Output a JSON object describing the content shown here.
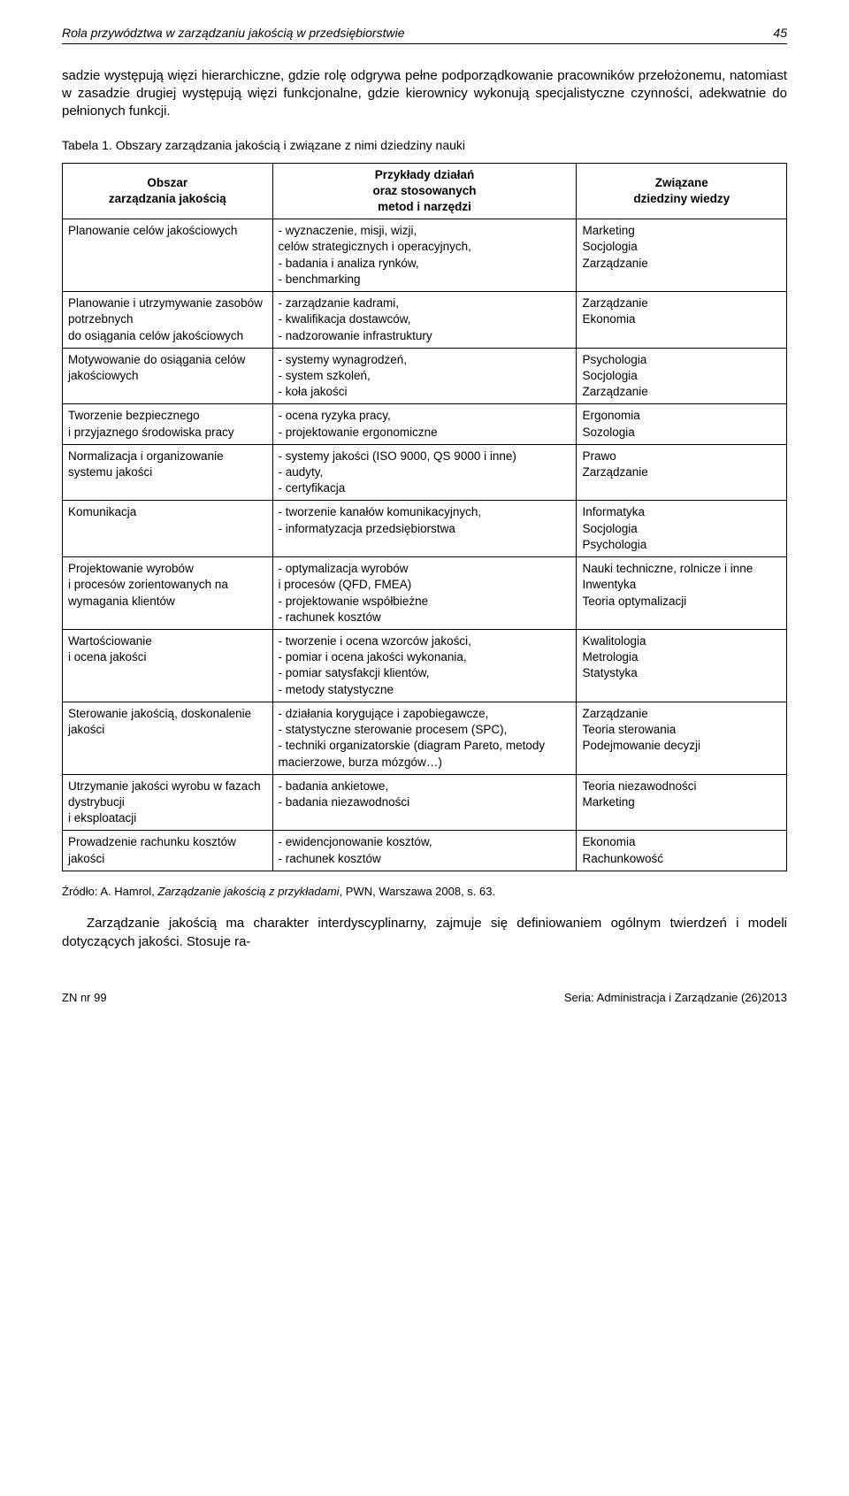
{
  "header": {
    "leftTitle": "Rola przywództwa w zarządzaniu jakością w przedsiębiorstwie",
    "pageNumber": "45"
  },
  "intro": "sadzie występują więzi hierarchiczne, gdzie rolę odgrywa pełne podporządkowanie pracowników przełożonemu, natomiast w zasadzie drugiej występują więzi funkcjonalne, gdzie kierownicy wykonują specjalistyczne czynności, adekwatnie do pełnionych funkcji.",
  "tableCaption": "Tabela 1. Obszary zarządzania jakością i związane z nimi dziedziny nauki",
  "tableHeaders": {
    "c1": "Obszar\nzarządzania jakością",
    "c2": "Przykłady działań\noraz stosowanych\nmetod i narzędzi",
    "c3": "Związane\ndziedziny wiedzy"
  },
  "rows": [
    {
      "c1": "Planowanie celów jakościowych",
      "c2": "- wyznaczenie, misji, wizji,\ncelów strategicznych i operacyjnych,\n- badania i analiza rynków,\n- benchmarking",
      "c3": "Marketing\nSocjologia\nZarządzanie"
    },
    {
      "c1": "Planowanie i utrzymywanie zasobów potrzebnych\ndo osiągania celów jakościowych",
      "c2": "- zarządzanie kadrami,\n- kwalifikacja dostawców,\n- nadzorowanie infrastruktury",
      "c3": "Zarządzanie\nEkonomia"
    },
    {
      "c1": "Motywowanie do osiągania celów jakościowych",
      "c2": "- systemy wynagrodzeń,\n- system szkoleń,\n- koła jakości",
      "c3": "Psychologia\nSocjologia\nZarządzanie"
    },
    {
      "c1": "Tworzenie bezpiecznego\ni przyjaznego środowiska pracy",
      "c2": "- ocena ryzyka pracy,\n- projektowanie ergonomiczne",
      "c3": "Ergonomia\nSozologia"
    },
    {
      "c1": "Normalizacja i organizowanie systemu jakości",
      "c2": "- systemy jakości (ISO 9000, QS 9000 i inne)\n- audyty,\n- certyfikacja",
      "c3": "Prawo\nZarządzanie"
    },
    {
      "c1": "Komunikacja",
      "c2": "- tworzenie kanałów komunikacyjnych,\n- informatyzacja przedsiębiorstwa",
      "c3": "Informatyka\nSocjologia\nPsychologia"
    },
    {
      "c1": "Projektowanie wyrobów\ni procesów zorientowanych na wymagania klientów",
      "c2": "- optymalizacja wyrobów\ni procesów (QFD, FMEA)\n- projektowanie współbieżne\n- rachunek kosztów",
      "c3": "Nauki techniczne, rolnicze i inne\nInwentyka\nTeoria optymalizacji"
    },
    {
      "c1": "Wartościowanie\ni ocena jakości",
      "c2": "- tworzenie i ocena wzorców jakości,\n- pomiar i ocena jakości wykonania,\n- pomiar satysfakcji klientów,\n- metody statystyczne",
      "c3": "Kwalitologia\nMetrologia\nStatystyka"
    },
    {
      "c1": "Sterowanie jakością, doskonalenie jakości",
      "c2": "- działania korygujące i zapobiegawcze,\n- statystyczne sterowanie procesem (SPC),\n- techniki organizatorskie (diagram Pareto, metody macierzowe, burza mózgów…)",
      "c3": "Zarządzanie\nTeoria sterowania\nPodejmowanie decyzji"
    },
    {
      "c1": "Utrzymanie jakości wyrobu w fazach dystrybucji\ni eksploatacji",
      "c2": "- badania ankietowe,\n- badania niezawodności",
      "c3": "Teoria niezawodności\nMarketing"
    },
    {
      "c1": "Prowadzenie rachunku kosztów jakości",
      "c2": "- ewidencjonowanie kosztów,\n- rachunek kosztów",
      "c3": "Ekonomia\nRachunkowość"
    }
  ],
  "source": "Źródło: A. Hamrol, Zarządzanie jakością z przykładami, PWN, Warszawa 2008, s. 63.",
  "closing": "Zarządzanie jakością ma charakter interdyscyplinarny, zajmuje się definiowaniem ogólnym twierdzeń i modeli dotyczących jakości. Stosuje ra-",
  "footer": {
    "left": "ZN nr 99",
    "right": "Seria: Administracja i Zarządzanie (26)2013"
  }
}
